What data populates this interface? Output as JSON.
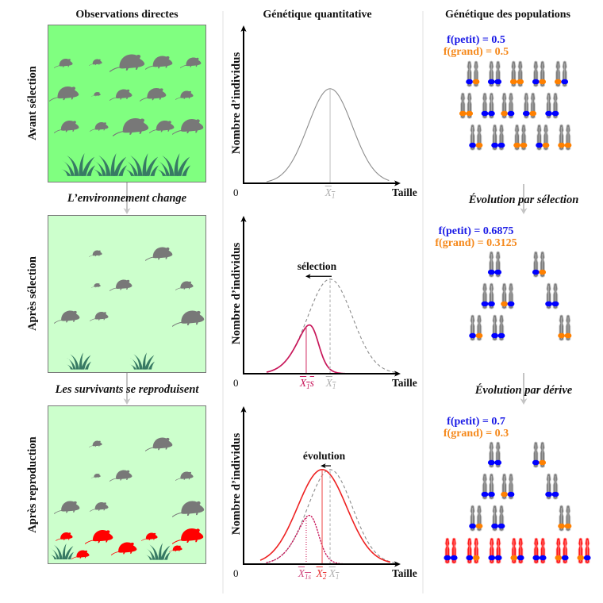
{
  "columns": {
    "observations": "Observations directes",
    "quantitative": "Génétique quantitative",
    "populations": "Génétique des populations"
  },
  "observations": {
    "stages": [
      {
        "label": "Avant sélection",
        "background": "#80ff80",
        "adults": 15,
        "offspring": 0
      },
      {
        "label": "Après sélection",
        "background": "#ccffcc",
        "adults": 8,
        "offspring": 0
      },
      {
        "label": "Après reproduction",
        "background": "#ccffcc",
        "adults": 8,
        "offspring": 7
      }
    ],
    "transitions": [
      "L’environnement change",
      "Les survivants se reproduisent"
    ],
    "colors": {
      "adult": "#787878",
      "offspring": "#ff0000",
      "grass": "#387a64",
      "border": "#7a7a7a",
      "arrow": "#c4c4c4"
    }
  },
  "quantitative": {
    "xlabel": "Taille",
    "ylabel": "Nombre d’individus",
    "origin_label": "0",
    "xlim": [
      0,
      10.26
    ],
    "ylim": [
      0,
      1.67
    ],
    "charts": [
      {
        "name": "avant-selection",
        "curves": [
          {
            "id": "initial",
            "kind": "gaussian",
            "mean": 5.65,
            "sd": 1.45,
            "amplitude": 1,
            "domain": [
              1.5,
              9.5
            ],
            "style": "solid",
            "color": "#8c8c8c"
          }
        ],
        "markers": [
          {
            "curve": "initial",
            "x": 5.65,
            "style": "solid",
            "color": "#c8c8c8",
            "label_color": "#b0b0b0",
            "label": {
              "main": "X",
              "sub": "1",
              "suffix": ""
            }
          }
        ],
        "annotation": null
      },
      {
        "name": "apres-selection",
        "curves": [
          {
            "id": "initial",
            "kind": "gaussian",
            "mean": 5.65,
            "sd": 1.45,
            "amplitude": 1,
            "domain": [
              1.5,
              9.9
            ],
            "style": "dashed",
            "color": "#8c8c8c"
          },
          {
            "id": "selected",
            "kind": "selected",
            "base": "initial",
            "survival_midpoint": 4.72,
            "survival_width": 0.31,
            "domain": [
              1.5,
              10.0
            ],
            "style": "solid",
            "color": "#c8175a"
          }
        ],
        "markers": [
          {
            "curve": "selected",
            "x": 4.09,
            "style": "solid",
            "color": "#d84a7a",
            "label_color": "#c8175a",
            "label": {
              "main": "X",
              "sub": "1",
              "suffix": "s"
            }
          },
          {
            "curve": "initial",
            "x": 5.65,
            "style": "dashed",
            "color": "#c8c8c8",
            "label_color": "#b0b0b0",
            "label": {
              "main": "X",
              "sub": "1",
              "suffix": ""
            }
          }
        ],
        "annotation": {
          "text": "sélection",
          "arrow_from": 5.75,
          "arrow_to": 4.04,
          "y": 1.03
        }
      },
      {
        "name": "apres-reproduction",
        "curves": [
          {
            "id": "initial",
            "kind": "gaussian",
            "mean": 5.65,
            "sd": 1.45,
            "amplitude": 1,
            "domain": [
              1.5,
              9.9
            ],
            "style": "dashed",
            "color": "#8c8c8c"
          },
          {
            "id": "selected",
            "kind": "selected",
            "base": "initial",
            "survival_midpoint": 4.72,
            "survival_width": 0.31,
            "domain": [
              1.5,
              10.0
            ],
            "style": "dotted",
            "color": "#c8175a"
          },
          {
            "id": "offspring",
            "kind": "gaussian",
            "mean": 5.13,
            "sd": 1.6,
            "amplitude": 1,
            "domain": [
              1.09,
              9.58
            ],
            "style": "solid",
            "color": "#ee2222"
          }
        ],
        "markers": [
          {
            "curve": "selected",
            "x": 4.09,
            "style": "dotted",
            "color": "#d84a7a",
            "label_color": "#d04a80",
            "label": {
              "main": "X",
              "sub": "1s",
              "suffix": ""
            }
          },
          {
            "curve": "offspring",
            "x": 5.13,
            "style": "solid",
            "color": "#f06060",
            "label_color": "#e83030",
            "label": {
              "main": "X",
              "sub": "2",
              "suffix": ""
            }
          },
          {
            "curve": "initial",
            "x": 5.65,
            "style": "dashed",
            "color": "#c8c8c8",
            "label_color": "#b0b0b0",
            "label": {
              "main": "X",
              "sub": "1",
              "suffix": ""
            }
          }
        ],
        "annotation": {
          "text": "évolution",
          "arrow_from": 5.7,
          "arrow_to": 5.03,
          "y": 1.04
        }
      }
    ]
  },
  "populations": {
    "allele_colors": {
      "petit": "#0000ff",
      "grand": "#ff8000"
    },
    "chromosome_colors": {
      "parent": "#7f7f7f",
      "offspring": "#ff1a1a"
    },
    "stages": [
      {
        "title": "",
        "freq_petit": "f(petit) = 0.5",
        "freq_grand": "f(grand) = 0.5",
        "rows": [
          [
            [
              "petit",
              "grand"
            ],
            [
              "petit",
              "petit"
            ],
            [
              "grand",
              "grand"
            ],
            [
              "petit",
              "grand"
            ],
            [
              "grand",
              "petit"
            ]
          ],
          [
            [
              "grand",
              "grand"
            ],
            [
              "petit",
              "petit"
            ],
            [
              "grand",
              "petit"
            ],
            [
              "petit",
              "grand"
            ],
            [
              "petit",
              "petit"
            ]
          ],
          [
            [
              "petit",
              "grand"
            ],
            [
              "petit",
              "petit"
            ],
            [
              "grand",
              "grand"
            ],
            [
              "petit",
              "grand"
            ],
            [
              "grand",
              "grand"
            ]
          ]
        ],
        "offspring": []
      },
      {
        "title": "Évolution par sélection",
        "freq_petit": "f(petit) = 0.6875",
        "freq_grand": "f(grand) = 0.3125",
        "rows": [
          [
            null,
            [
              "petit",
              "petit"
            ],
            null,
            [
              "petit",
              "grand"
            ],
            null
          ],
          [
            null,
            [
              "petit",
              "petit"
            ],
            [
              "grand",
              "petit"
            ],
            null,
            [
              "petit",
              "petit"
            ]
          ],
          [
            [
              "petit",
              "grand"
            ],
            [
              "petit",
              "petit"
            ],
            null,
            null,
            [
              "grand",
              "grand"
            ]
          ]
        ],
        "offspring": []
      },
      {
        "title": "Évolution par dérive",
        "freq_petit": "f(petit) = 0.7",
        "freq_grand": "f(grand) = 0.3",
        "rows": [
          [
            null,
            [
              "petit",
              "petit"
            ],
            null,
            [
              "petit",
              "grand"
            ],
            null
          ],
          [
            null,
            [
              "petit",
              "petit"
            ],
            [
              "grand",
              "petit"
            ],
            null,
            [
              "petit",
              "petit"
            ]
          ],
          [
            [
              "petit",
              "grand"
            ],
            [
              "petit",
              "petit"
            ],
            null,
            null,
            [
              "grand",
              "grand"
            ]
          ]
        ],
        "offspring": [
          [
            "petit",
            "petit"
          ],
          [
            "petit",
            "grand"
          ],
          [
            "petit",
            "petit"
          ],
          [
            "grand",
            "petit"
          ],
          [
            "petit",
            "petit"
          ],
          [
            "grand",
            "petit"
          ],
          [
            "grand",
            "petit"
          ]
        ]
      }
    ]
  }
}
